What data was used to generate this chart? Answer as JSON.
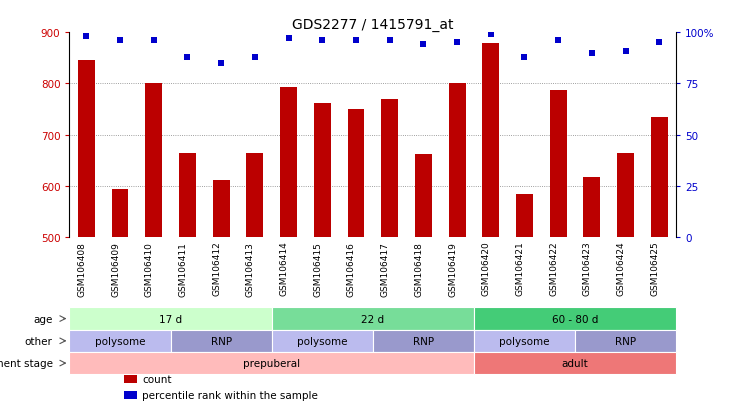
{
  "title": "GDS2277 / 1415791_at",
  "samples": [
    "GSM106408",
    "GSM106409",
    "GSM106410",
    "GSM106411",
    "GSM106412",
    "GSM106413",
    "GSM106414",
    "GSM106415",
    "GSM106416",
    "GSM106417",
    "GSM106418",
    "GSM106419",
    "GSM106420",
    "GSM106421",
    "GSM106422",
    "GSM106423",
    "GSM106424",
    "GSM106425"
  ],
  "bar_values": [
    845,
    593,
    800,
    665,
    612,
    665,
    793,
    762,
    750,
    770,
    663,
    800,
    878,
    585,
    787,
    618,
    665,
    735
  ],
  "percentile_values": [
    98,
    96,
    96,
    88,
    85,
    88,
    97,
    96,
    96,
    96,
    94,
    95,
    99,
    88,
    96,
    90,
    91,
    95
  ],
  "bar_color": "#bb0000",
  "dot_color": "#0000cc",
  "ylim_left": [
    500,
    900
  ],
  "ylim_right": [
    0,
    100
  ],
  "yticks_left": [
    500,
    600,
    700,
    800,
    900
  ],
  "yticks_right": [
    0,
    25,
    50,
    75,
    100
  ],
  "grid_values": [
    600,
    700,
    800
  ],
  "age_segments": [
    {
      "text": "17 d",
      "start": 0,
      "end": 6,
      "color": "#ccffcc"
    },
    {
      "text": "22 d",
      "start": 6,
      "end": 12,
      "color": "#77dd99"
    },
    {
      "text": "60 - 80 d",
      "start": 12,
      "end": 18,
      "color": "#44cc77"
    }
  ],
  "other_segments": [
    {
      "text": "polysome",
      "start": 0,
      "end": 3,
      "color": "#bbbbee"
    },
    {
      "text": "RNP",
      "start": 3,
      "end": 6,
      "color": "#9999cc"
    },
    {
      "text": "polysome",
      "start": 6,
      "end": 9,
      "color": "#bbbbee"
    },
    {
      "text": "RNP",
      "start": 9,
      "end": 12,
      "color": "#9999cc"
    },
    {
      "text": "polysome",
      "start": 12,
      "end": 15,
      "color": "#bbbbee"
    },
    {
      "text": "RNP",
      "start": 15,
      "end": 18,
      "color": "#9999cc"
    }
  ],
  "dev_segments": [
    {
      "text": "prepuberal",
      "start": 0,
      "end": 12,
      "color": "#ffbbbb"
    },
    {
      "text": "adult",
      "start": 12,
      "end": 18,
      "color": "#ee7777"
    }
  ],
  "annot_labels": [
    "age",
    "other",
    "development stage"
  ],
  "legend_items": [
    {
      "label": "count",
      "color": "#bb0000"
    },
    {
      "label": "percentile rank within the sample",
      "color": "#0000cc"
    }
  ],
  "background_color": "#ffffff",
  "tick_color_left": "#cc0000",
  "tick_color_right": "#0000cc",
  "title_fontsize": 10,
  "bar_width": 0.5
}
